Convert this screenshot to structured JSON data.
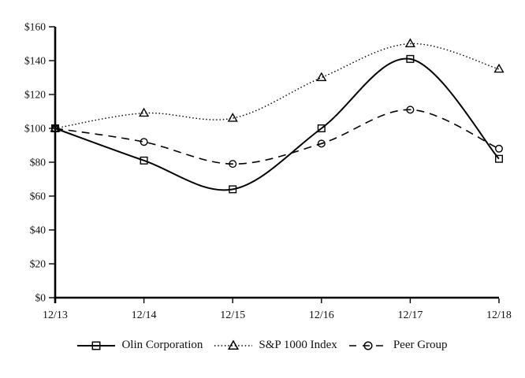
{
  "chart_data": {
    "type": "line",
    "title": "",
    "xlabel": "",
    "ylabel": "",
    "categories": [
      "12/13",
      "12/14",
      "12/15",
      "12/16",
      "12/17",
      "12/18"
    ],
    "series": [
      {
        "name": "Olin Corporation",
        "values": [
          100,
          81,
          64,
          100,
          141,
          82
        ],
        "line_style": "solid",
        "marker": "square"
      },
      {
        "name": "S&P 1000 Index",
        "values": [
          100,
          109,
          106,
          130,
          150,
          135
        ],
        "line_style": "dotted",
        "marker": "triangle"
      },
      {
        "name": "Peer Group",
        "values": [
          100,
          92,
          79,
          91,
          111,
          88
        ],
        "line_style": "dashed",
        "marker": "circle"
      }
    ],
    "ylim": [
      0,
      160
    ],
    "ytick_step": 20,
    "y_tick_labels": [
      "$0",
      "$20",
      "$40",
      "$60",
      "$80",
      "$100",
      "$120",
      "$140",
      "$160"
    ],
    "x_tick_labels": [
      "12/13",
      "12/14",
      "12/15",
      "12/16",
      "12/17",
      "12/18"
    ],
    "grid": false,
    "legend_position": "bottom",
    "line_color": "#000000",
    "background": "#ffffff"
  }
}
